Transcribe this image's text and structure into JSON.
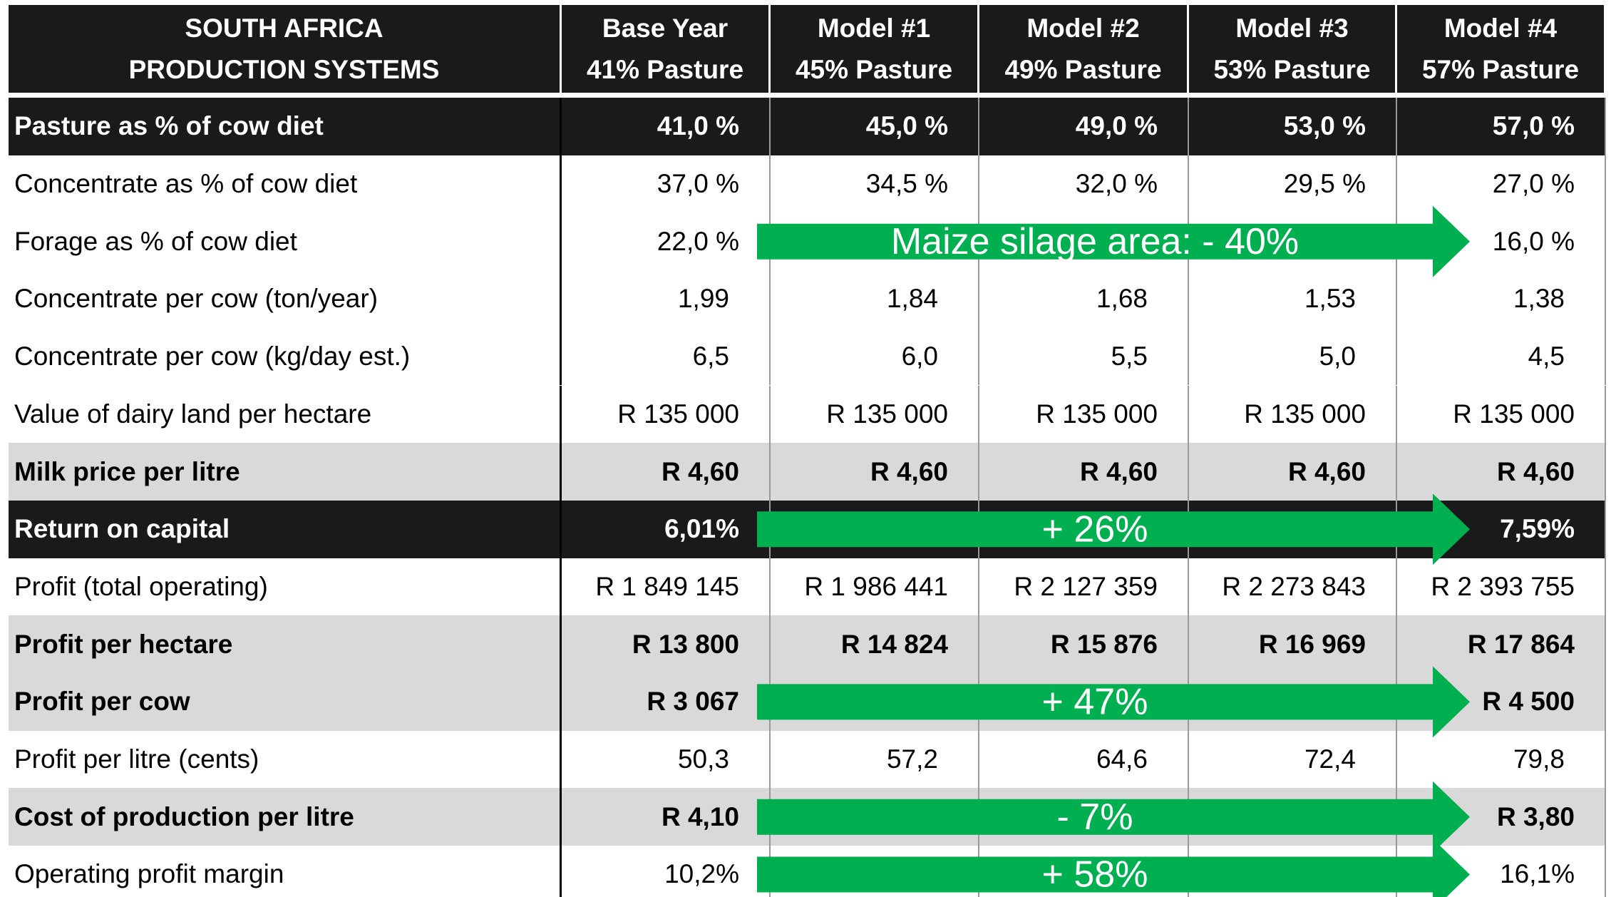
{
  "header": {
    "title": [
      "SOUTH AFRICA",
      "PRODUCTION SYSTEMS"
    ],
    "columns": [
      [
        "Base Year",
        "41% Pasture"
      ],
      [
        "Model #1",
        "45% Pasture"
      ],
      [
        "Model #2",
        "49% Pasture"
      ],
      [
        "Model #3",
        "53% Pasture"
      ],
      [
        "Model #4",
        "57% Pasture"
      ]
    ]
  },
  "rows": [
    {
      "label": "Pasture as % of cow diet",
      "values": [
        "41,0 %",
        "45,0 %",
        "49,0 %",
        "53,0 %",
        "57,0 %"
      ],
      "style": "dark"
    },
    {
      "label": "Concentrate as % of cow diet",
      "values": [
        "37,0 %",
        "34,5 %",
        "32,0 %",
        "29,5 %",
        "27,0 %"
      ]
    },
    {
      "label": "Forage as % of cow diet",
      "values": [
        "22,0 %",
        "",
        "",
        "",
        "16,0 %"
      ],
      "arrow": "Maize silage area: - 40%"
    },
    {
      "label": "Concentrate per cow (ton/year)",
      "values": [
        "1,99",
        "1,84",
        "1,68",
        "1,53",
        "1,38"
      ],
      "style": "loose"
    },
    {
      "label": "Concentrate per cow (kg/day est.)",
      "values": [
        "6,5",
        "6,0",
        "5,5",
        "5,0",
        "4,5"
      ],
      "style": "loose"
    },
    {
      "label": "Value of dairy land per hectare",
      "values": [
        "R 135 000",
        "R 135 000",
        "R 135 000",
        "R 135 000",
        "R 135 000"
      ]
    },
    {
      "label": "Milk price per litre",
      "values": [
        "R 4,60",
        "R 4,60",
        "R 4,60",
        "R 4,60",
        "R 4,60"
      ],
      "style": "gray"
    },
    {
      "label": "Return on capital",
      "values": [
        "6,01%",
        "",
        "",
        "",
        "7,59%"
      ],
      "style": "dark",
      "arrow": "+ 26%"
    },
    {
      "label": "Profit (total operating)",
      "values": [
        "R 1 849 145",
        "R 1 986 441",
        "R 2 127 359",
        "R 2 273 843",
        "R 2 393 755"
      ]
    },
    {
      "label": "Profit per hectare",
      "values": [
        "R 13 800",
        "R 14 824",
        "R 15 876",
        "R 16 969",
        "R 17 864"
      ],
      "style": "gray"
    },
    {
      "label": "Profit per cow",
      "values": [
        "R 3 067",
        "",
        "",
        "",
        "R 4 500"
      ],
      "style": "gray",
      "arrow": "+ 47%"
    },
    {
      "label": "Profit per litre (cents)",
      "values": [
        "50,3",
        "57,2",
        "64,6",
        "72,4",
        "79,8"
      ],
      "style": "loose"
    },
    {
      "label": "Cost of production per litre",
      "values": [
        "R 4,10",
        "",
        "",
        "",
        "R 3,80"
      ],
      "style": "gray",
      "arrow": "- 7%"
    },
    {
      "label": "Operating profit margin",
      "values": [
        "10,2%",
        "",
        "",
        "",
        "16,1%"
      ],
      "arrow": "+ 58%"
    }
  ]
}
